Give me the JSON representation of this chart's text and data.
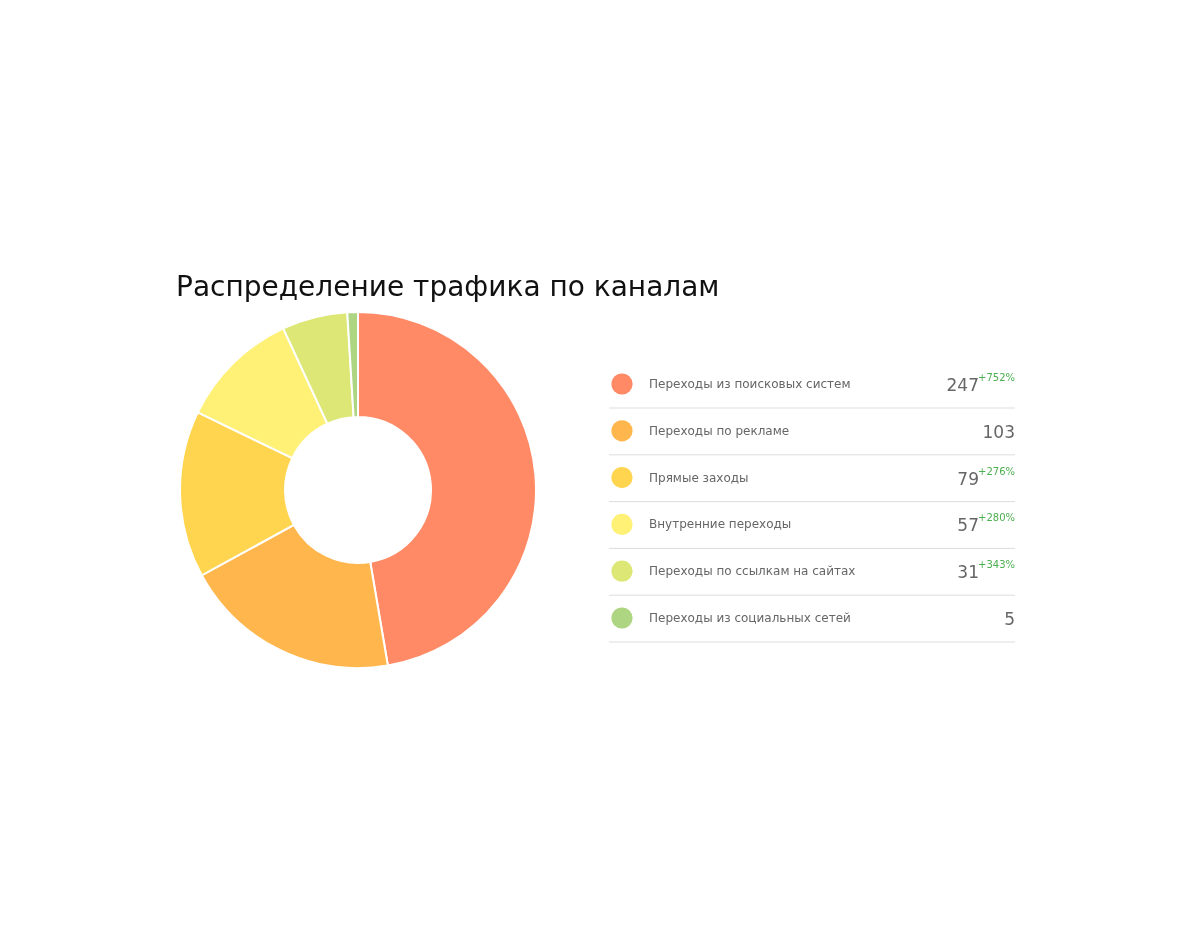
{
  "chart_data": {
    "type": "donut",
    "title": "Распределение трафика по каналам",
    "categories": [
      "Переходы из поисковых систем",
      "Переходы по рекламе",
      "Прямые заходы",
      "Внутренние переходы",
      "Переходы по ссылкам на сайтах",
      "Переходы из социальных сетей"
    ],
    "values": [
      247,
      103,
      79,
      57,
      31,
      5
    ],
    "colors": [
      "#ff8a65",
      "#ffb74d",
      "#ffd54f",
      "#fff176",
      "#dce775",
      "#aed581"
    ],
    "value_labels": [
      "247$^{+752%}$",
      "103",
      "79$^{+276%}$",
      "57$^{+280%}$",
      "31$^{+343%}$",
      "5"
    ],
    "legend": "right"
  }
}
